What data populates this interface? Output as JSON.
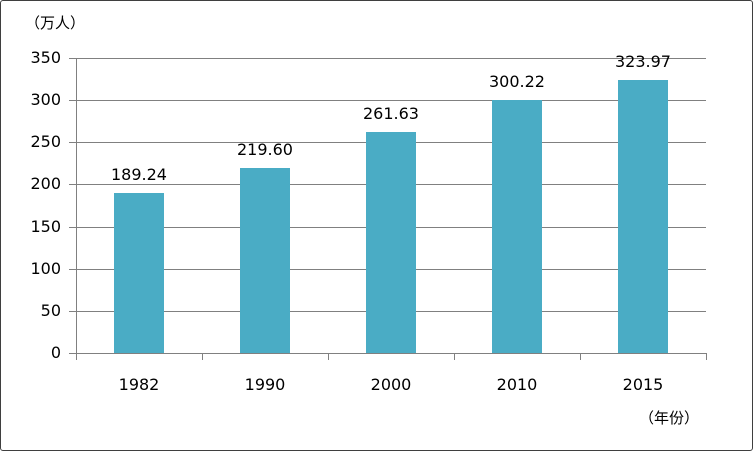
{
  "chart_data": {
    "type": "bar",
    "title": "",
    "categories": [
      "1982",
      "1990",
      "2000",
      "2010",
      "2015"
    ],
    "values": [
      189.24,
      219.6,
      261.63,
      300.22,
      323.97
    ],
    "data_labels": [
      "189.24",
      "219.60",
      "261.63",
      "300.22",
      "323.97"
    ],
    "xlabel": "（年份）",
    "ylabel": "（万人）",
    "ylim": [
      0,
      350
    ],
    "yticks": [
      0,
      50,
      100,
      150,
      200,
      250,
      300,
      350
    ],
    "grid": true,
    "legend_position": "none"
  },
  "colors": {
    "bar": "#4AACC5",
    "gridline": "#808080",
    "axis": "#808080",
    "text": "#000000",
    "border": "#3f3f3f",
    "background": "#ffffff"
  }
}
